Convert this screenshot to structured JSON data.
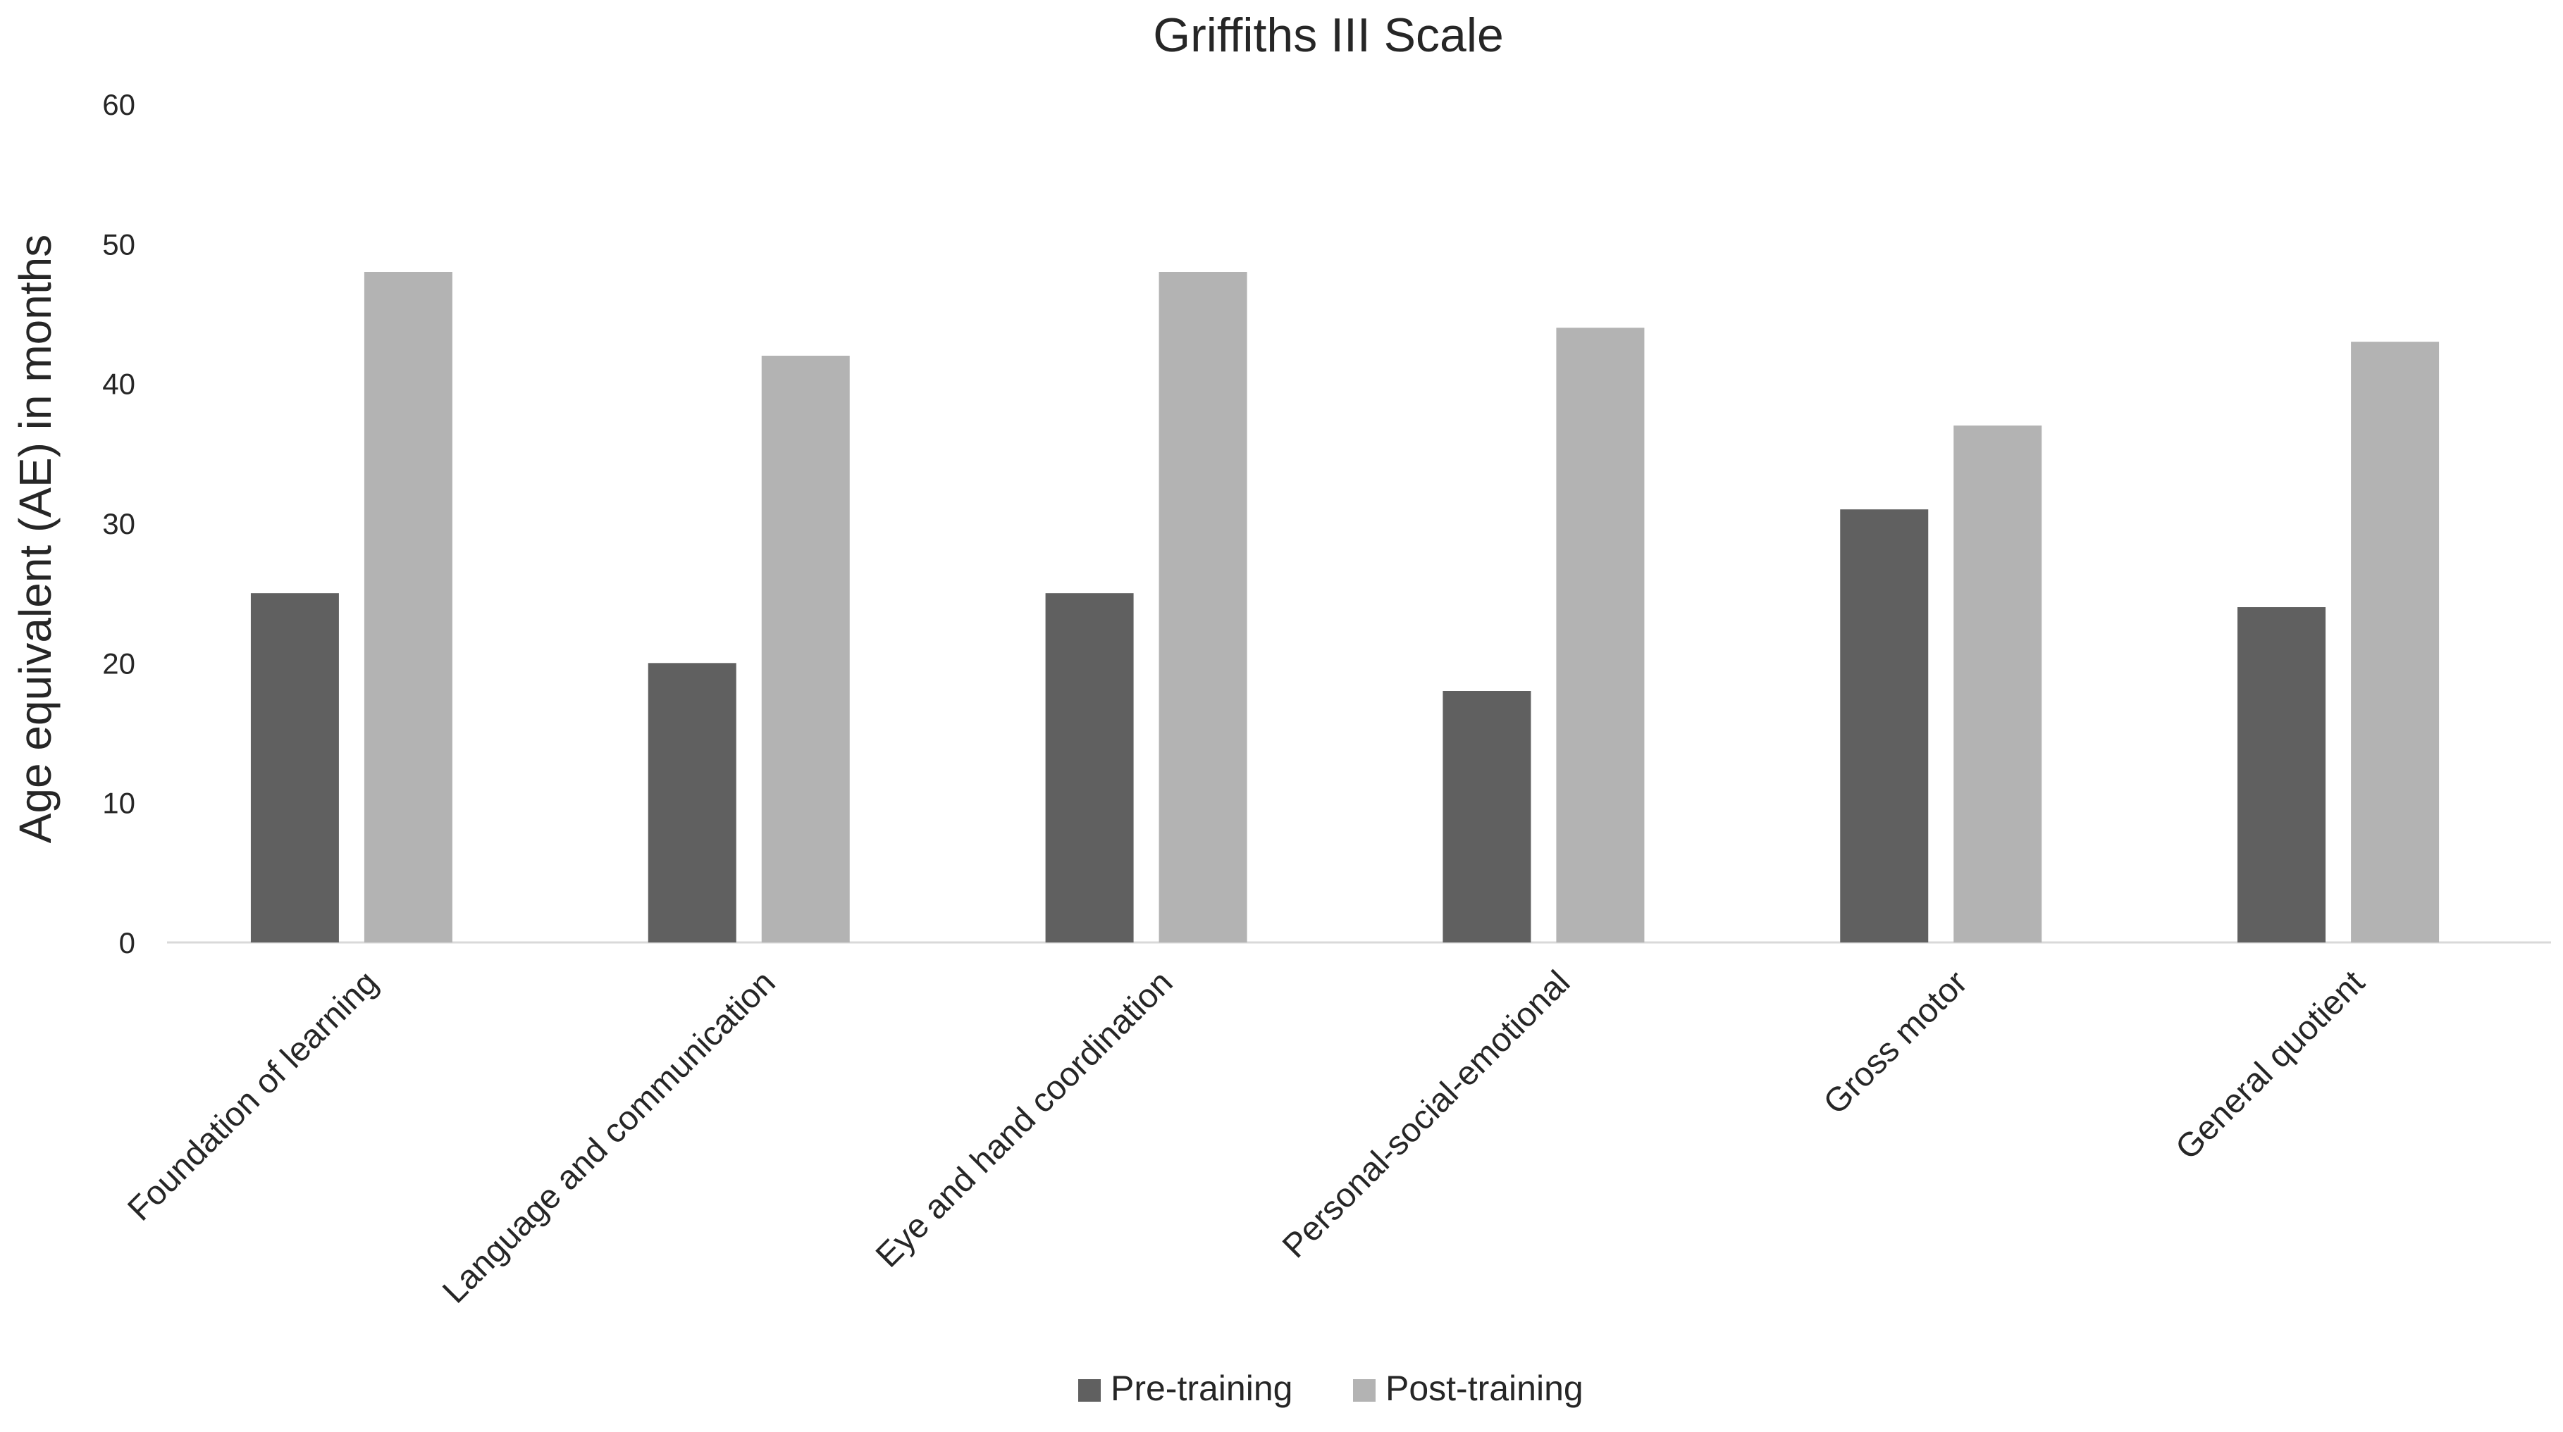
{
  "chart_data": {
    "type": "bar",
    "title": "Griffiths III Scale",
    "xlabel": "",
    "ylabel": "Age equivalent (AE) in months",
    "ylim": [
      0,
      60
    ],
    "yticks": [
      0,
      10,
      20,
      30,
      40,
      50,
      60
    ],
    "grid": false,
    "legend_position": "bottom",
    "categories": [
      "Foundation of learning",
      "Language and communication",
      "Eye and hand coordination",
      "Personal-social-emotional",
      "Gross motor",
      "General quotient"
    ],
    "series": [
      {
        "name": "Pre-training",
        "color": "#606060",
        "values": [
          25,
          20,
          25,
          18,
          31,
          24
        ]
      },
      {
        "name": "Post-training",
        "color": "#b3b3b3",
        "values": [
          48,
          42,
          48,
          44,
          37,
          43
        ]
      }
    ],
    "axis_color": "#d9d9d9"
  }
}
